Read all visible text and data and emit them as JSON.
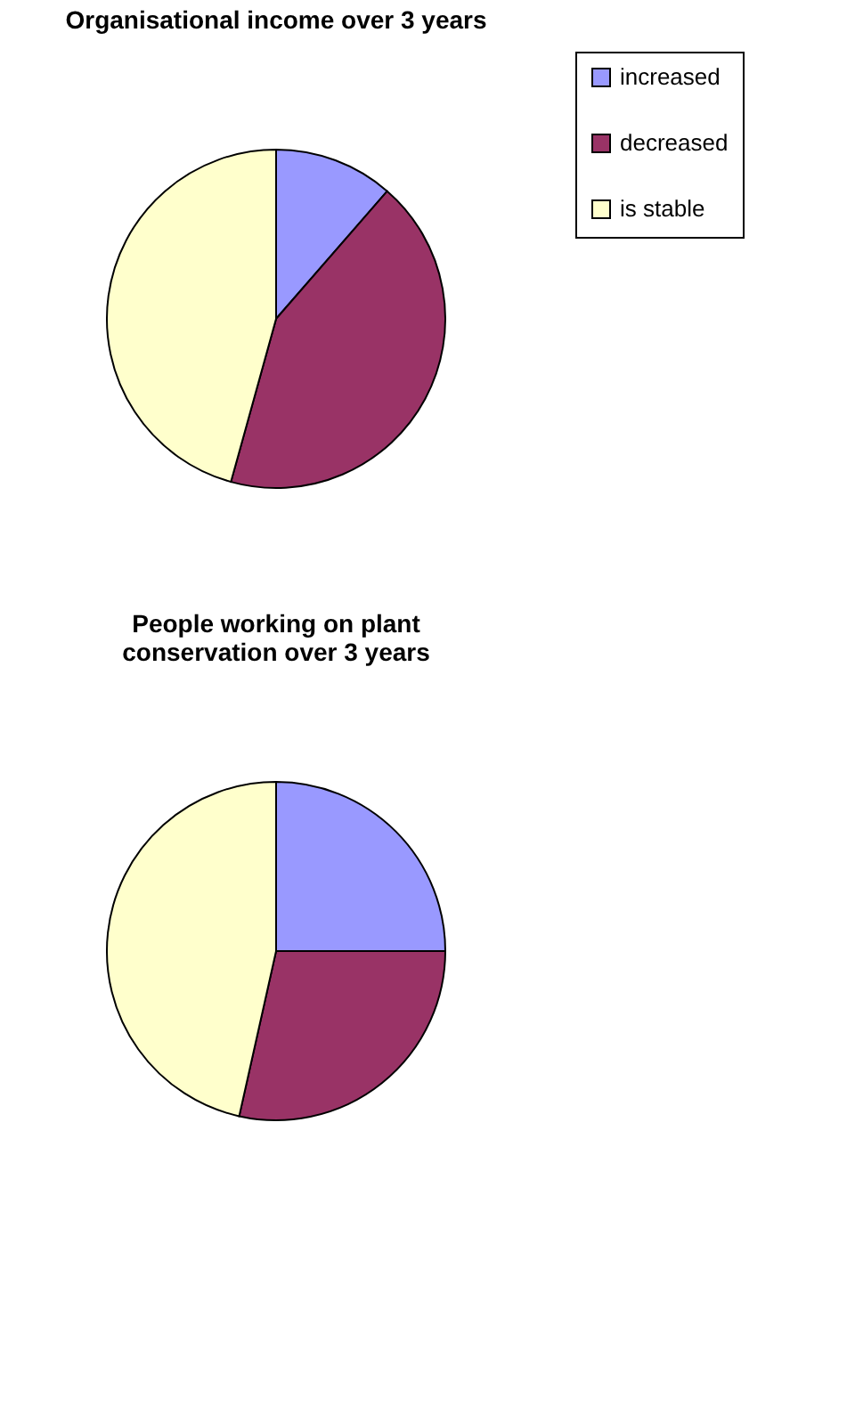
{
  "chart_data": [
    {
      "type": "pie",
      "title": "Organisational income over 3 years",
      "categories": [
        "increased",
        "decreased",
        "is stable"
      ],
      "values": [
        11.4,
        42.9,
        45.7
      ],
      "colors": [
        "#9999ff",
        "#993366",
        "#ffffcc"
      ],
      "legend": "right"
    },
    {
      "type": "pie",
      "title": "People working on plant\nconservation  over 3 years",
      "categories": [
        null,
        null,
        null
      ],
      "values": [
        25,
        28.5,
        46.5
      ],
      "colors": [
        "#9999ff",
        "#993366",
        "#ffffcc"
      ]
    }
  ]
}
